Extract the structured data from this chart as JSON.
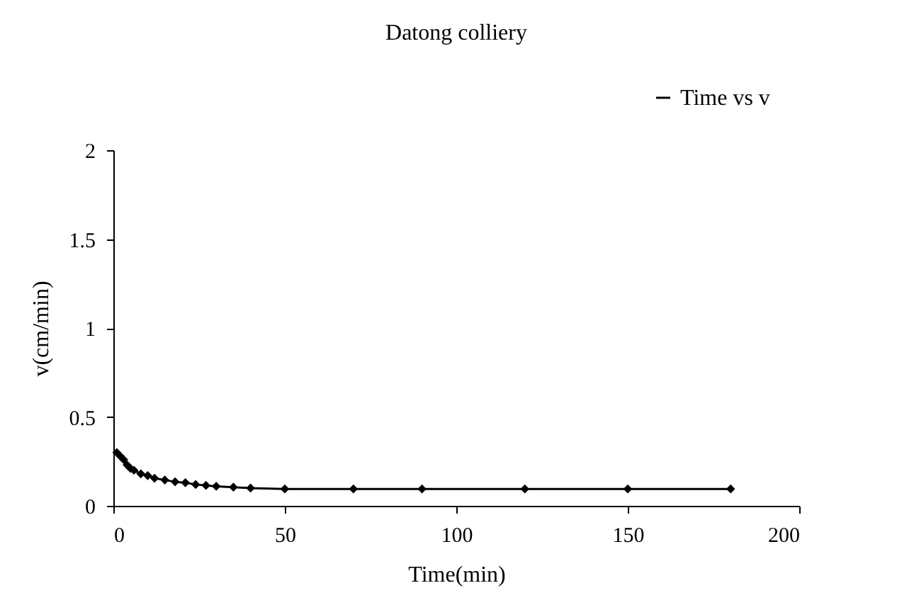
{
  "chart_data": {
    "type": "line",
    "title": "Datong colliery",
    "xlabel": "Time(min)",
    "ylabel": "v(cm/min)",
    "x": [
      1,
      2,
      3,
      4,
      5,
      6,
      8,
      10,
      12,
      15,
      18,
      21,
      24,
      27,
      30,
      35,
      40,
      50,
      70,
      90,
      120,
      150,
      180
    ],
    "series": [
      {
        "name": "Time vs v",
        "color": "#000000",
        "values": [
          0.3,
          0.28,
          0.26,
          0.23,
          0.21,
          0.2,
          0.18,
          0.17,
          0.155,
          0.145,
          0.135,
          0.13,
          0.12,
          0.115,
          0.11,
          0.105,
          0.1,
          0.095,
          0.095,
          0.095,
          0.095,
          0.095,
          0.095
        ]
      }
    ],
    "xlim": [
      0,
      200
    ],
    "xticks": [
      0,
      50,
      100,
      150,
      200
    ],
    "ylim": [
      0,
      2
    ],
    "yticks": [
      0,
      0.5,
      1,
      1.5,
      2
    ],
    "grid": false,
    "legend": "top right",
    "marker": "diamond",
    "line_style": "solid"
  }
}
